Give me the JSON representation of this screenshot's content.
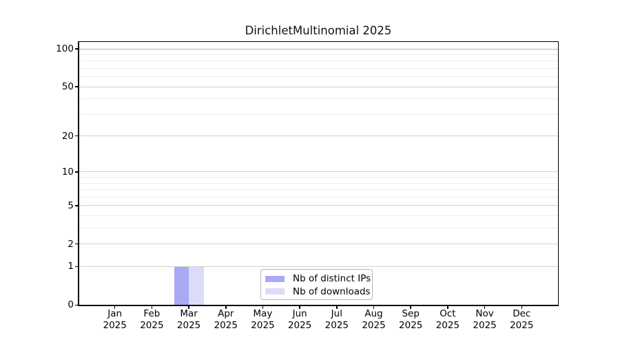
{
  "figure": {
    "title": "DirichletMultinomial 2025"
  },
  "chart_data": {
    "type": "bar",
    "title": "DirichletMultinomial 2025",
    "x_categories_month": [
      "Jan",
      "Feb",
      "Mar",
      "Apr",
      "May",
      "Jun",
      "Jul",
      "Aug",
      "Sep",
      "Oct",
      "Nov",
      "Dec"
    ],
    "x_year_label": "2025",
    "y_scale": "log1p",
    "ylim": [
      0,
      115
    ],
    "y_major_ticks": [
      0,
      1,
      2,
      5,
      10,
      20,
      50,
      100
    ],
    "y_minor_gridlines": [
      3,
      4,
      6,
      7,
      8,
      9,
      30,
      40,
      60,
      70,
      80,
      90
    ],
    "grid": "horizontal-only",
    "legend_position": "lower-center",
    "series": [
      {
        "name": "Nb of distinct IPs",
        "color": "#a9a9f4",
        "values": [
          0,
          0,
          1,
          0,
          0,
          0,
          0,
          0,
          0,
          0,
          0,
          0
        ]
      },
      {
        "name": "Nb of downloads",
        "color": "#dcdcf9",
        "values": [
          0,
          0,
          1,
          0,
          0,
          0,
          0,
          0,
          0,
          0,
          0,
          0
        ]
      }
    ]
  },
  "colors": {
    "spine": "#000000",
    "grid_major": "#d0d0d0",
    "grid_major_top": "#b2b2b2",
    "grid_minor": "#ececec",
    "text": "#000000",
    "legend_border": "#b5b5b5"
  }
}
